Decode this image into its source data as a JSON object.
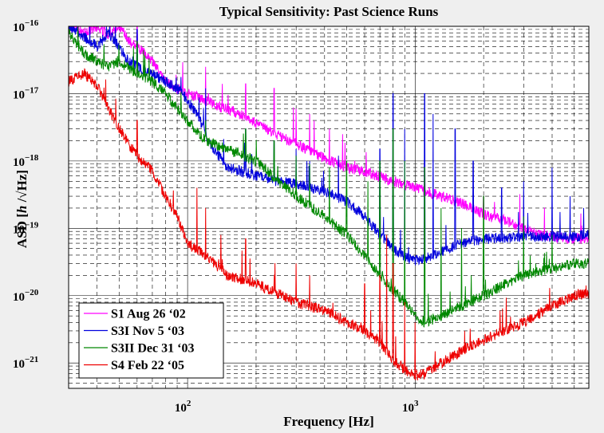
{
  "chart_data": {
    "type": "line",
    "title": "Typical Sensitivity: Past Science Runs",
    "xlabel": "Frequency  [Hz]",
    "ylabel_parts": {
      "pre": "ASD [",
      "italic": "h",
      "post": " /√Hz]"
    },
    "xscale": "log",
    "yscale": "log",
    "xlim": [
      30,
      5800
    ],
    "ylim": [
      4.2e-22,
      1e-16
    ],
    "xticks": [
      {
        "value": 100,
        "label": "10",
        "exp": "2"
      },
      {
        "value": 1000,
        "label": "10",
        "exp": "3"
      }
    ],
    "yticks": [
      {
        "value": 1e-16,
        "label": "10",
        "exp": "−16"
      },
      {
        "value": 1e-17,
        "label": "10",
        "exp": "−17"
      },
      {
        "value": 1e-18,
        "label": "10",
        "exp": "−18"
      },
      {
        "value": 1e-19,
        "label": "10",
        "exp": "−19"
      },
      {
        "value": 1e-20,
        "label": "10",
        "exp": "−20"
      },
      {
        "value": 1e-21,
        "label": "10",
        "exp": "−21"
      }
    ],
    "grid": true,
    "legend_position": "bottom-left",
    "series": [
      {
        "name": "S1 Aug 26 ‘02",
        "color": "#ff00ff",
        "points": [
          [
            30,
            1e-16
          ],
          [
            35,
            8e-17
          ],
          [
            40,
            1e-16
          ],
          [
            45,
            7e-17
          ],
          [
            50,
            1e-16
          ],
          [
            55,
            6e-17
          ],
          [
            60,
            5e-17
          ],
          [
            70,
            3e-17
          ],
          [
            80,
            1.5e-17
          ],
          [
            100,
            1e-17
          ],
          [
            130,
            7e-18
          ],
          [
            170,
            5e-18
          ],
          [
            220,
            3e-18
          ],
          [
            300,
            1.8e-18
          ],
          [
            400,
            1.1e-18
          ],
          [
            500,
            8e-19
          ],
          [
            600,
            7e-19
          ],
          [
            800,
            5e-19
          ],
          [
            1000,
            4e-19
          ],
          [
            1300,
            3e-19
          ],
          [
            1700,
            2.2e-19
          ],
          [
            2000,
            1.6e-19
          ],
          [
            2500,
            1.3e-19
          ],
          [
            3000,
            1e-19
          ],
          [
            3500,
            8e-20
          ],
          [
            4000,
            7.5e-20
          ],
          [
            5000,
            7e-20
          ],
          [
            5800,
            7e-20
          ]
        ],
        "spikes": [
          [
            60,
            1e-16
          ],
          [
            120,
            2.5e-17
          ],
          [
            180,
            1.4e-17
          ],
          [
            240,
            1.2e-17
          ],
          [
            300,
            6e-18
          ],
          [
            344,
            5e-18
          ],
          [
            360,
            4e-18
          ],
          [
            420,
            3e-18
          ],
          [
            480,
            2.5e-18
          ],
          [
            1100,
            1e-18
          ],
          [
            1350,
            2e-19
          ],
          [
            2000,
            3e-19
          ]
        ]
      },
      {
        "name": "S3I Nov 5 ‘03",
        "color": "#0000dd",
        "points": [
          [
            30,
            1e-16
          ],
          [
            35,
            7e-17
          ],
          [
            40,
            5e-17
          ],
          [
            45,
            8e-17
          ],
          [
            50,
            5e-17
          ],
          [
            55,
            3e-17
          ],
          [
            60,
            2.5e-17
          ],
          [
            70,
            2e-17
          ],
          [
            80,
            1.5e-17
          ],
          [
            90,
            1.2e-17
          ],
          [
            100,
            8e-18
          ],
          [
            110,
            5e-18
          ],
          [
            120,
            2.5e-18
          ],
          [
            130,
            1.5e-18
          ],
          [
            150,
            8e-19
          ],
          [
            200,
            6e-19
          ],
          [
            250,
            5e-19
          ],
          [
            300,
            4.5e-19
          ],
          [
            400,
            3.5e-19
          ],
          [
            500,
            2.5e-19
          ],
          [
            600,
            1.5e-19
          ],
          [
            700,
            8e-20
          ],
          [
            800,
            5e-20
          ],
          [
            900,
            3.8e-20
          ],
          [
            1000,
            3.3e-20
          ],
          [
            1100,
            3.5e-20
          ],
          [
            1300,
            4.5e-20
          ],
          [
            1600,
            6e-20
          ],
          [
            2000,
            7e-20
          ],
          [
            3000,
            7.5e-20
          ],
          [
            4000,
            7.5e-20
          ],
          [
            5000,
            7.5e-20
          ],
          [
            5800,
            8e-20
          ]
        ],
        "spikes": [
          [
            60,
            9e-17
          ],
          [
            120,
            1.2e-17
          ],
          [
            180,
            3e-18
          ],
          [
            240,
            2e-18
          ],
          [
            300,
            1.5e-18
          ],
          [
            344,
            1e-18
          ],
          [
            460,
            1.2e-18
          ],
          [
            700,
            1.5e-18
          ],
          [
            800,
            1e-17
          ],
          [
            900,
            3e-18
          ],
          [
            1100,
            1e-17
          ],
          [
            1200,
            5e-18
          ],
          [
            1500,
            3e-18
          ],
          [
            1800,
            1e-18
          ],
          [
            2400,
            4e-19
          ],
          [
            3000,
            5e-19
          ],
          [
            4000,
            8e-19
          ],
          [
            4800,
            3e-19
          ],
          [
            5500,
            2e-19
          ]
        ]
      },
      {
        "name": "S3II Dec 31 ‘03",
        "color": "#008800",
        "points": [
          [
            30,
            8e-17
          ],
          [
            35,
            4e-17
          ],
          [
            40,
            3e-17
          ],
          [
            45,
            2.5e-17
          ],
          [
            50,
            3e-17
          ],
          [
            60,
            2e-17
          ],
          [
            70,
            1.5e-17
          ],
          [
            80,
            1e-17
          ],
          [
            90,
            6e-18
          ],
          [
            100,
            4e-18
          ],
          [
            120,
            2e-18
          ],
          [
            150,
            1.5e-18
          ],
          [
            200,
            1e-18
          ],
          [
            250,
            5e-19
          ],
          [
            300,
            3e-19
          ],
          [
            400,
            1.5e-19
          ],
          [
            500,
            8e-20
          ],
          [
            600,
            4e-20
          ],
          [
            700,
            2e-20
          ],
          [
            800,
            1.2e-20
          ],
          [
            900,
            8e-21
          ],
          [
            1000,
            5e-21
          ],
          [
            1100,
            4e-21
          ],
          [
            1300,
            5e-21
          ],
          [
            1600,
            7e-21
          ],
          [
            2000,
            1e-20
          ],
          [
            2500,
            1.5e-20
          ],
          [
            3000,
            2e-20
          ],
          [
            4000,
            2.5e-20
          ],
          [
            5000,
            3e-20
          ],
          [
            5800,
            3e-20
          ]
        ],
        "spikes": [
          [
            60,
            6e-17
          ],
          [
            120,
            4e-18
          ],
          [
            180,
            3e-18
          ],
          [
            240,
            2e-18
          ],
          [
            300,
            1.2e-18
          ],
          [
            344,
            9e-19
          ],
          [
            420,
            8e-19
          ],
          [
            500,
            1e-18
          ],
          [
            620,
            5e-19
          ],
          [
            700,
            1e-18
          ],
          [
            800,
            3e-18
          ],
          [
            900,
            1e-18
          ],
          [
            1100,
            8e-19
          ],
          [
            1300,
            2e-19
          ],
          [
            1600,
            1e-19
          ],
          [
            2000,
            3e-19
          ],
          [
            3000,
            1.5e-19
          ],
          [
            4000,
            8e-20
          ]
        ]
      },
      {
        "name": "S4 Feb 22 ‘05",
        "color": "#ee0000",
        "points": [
          [
            30,
            1.5e-17
          ],
          [
            35,
            2e-17
          ],
          [
            40,
            1.3e-17
          ],
          [
            45,
            6e-18
          ],
          [
            50,
            3e-18
          ],
          [
            55,
            1.8e-18
          ],
          [
            60,
            1.2e-18
          ],
          [
            70,
            7e-19
          ],
          [
            80,
            3e-19
          ],
          [
            90,
            1.5e-19
          ],
          [
            100,
            6e-20
          ],
          [
            120,
            4e-20
          ],
          [
            150,
            2e-20
          ],
          [
            200,
            1.5e-20
          ],
          [
            300,
            8e-21
          ],
          [
            400,
            6e-21
          ],
          [
            500,
            4e-21
          ],
          [
            600,
            3e-21
          ],
          [
            700,
            2e-21
          ],
          [
            800,
            1.1e-21
          ],
          [
            900,
            8e-22
          ],
          [
            1000,
            6.5e-22
          ],
          [
            1100,
            7e-22
          ],
          [
            1300,
            1e-21
          ],
          [
            1600,
            1.5e-21
          ],
          [
            2000,
            2.2e-21
          ],
          [
            3000,
            4e-21
          ],
          [
            4000,
            7e-21
          ],
          [
            5000,
            1e-20
          ],
          [
            5800,
            1.1e-20
          ]
        ],
        "spikes": [
          [
            60,
            4e-18
          ],
          [
            110,
            4e-19
          ],
          [
            120,
            2e-19
          ],
          [
            140,
            8e-20
          ],
          [
            180,
            7e-20
          ],
          [
            300,
            3e-20
          ],
          [
            344,
            2e-20
          ],
          [
            600,
            1.5e-20
          ],
          [
            700,
            2e-20
          ],
          [
            750,
            8e-20
          ],
          [
            800,
            3e-20
          ],
          [
            900,
            8e-21
          ],
          [
            1000,
            4e-21
          ],
          [
            3900,
            1.3e-20
          ]
        ]
      }
    ]
  }
}
